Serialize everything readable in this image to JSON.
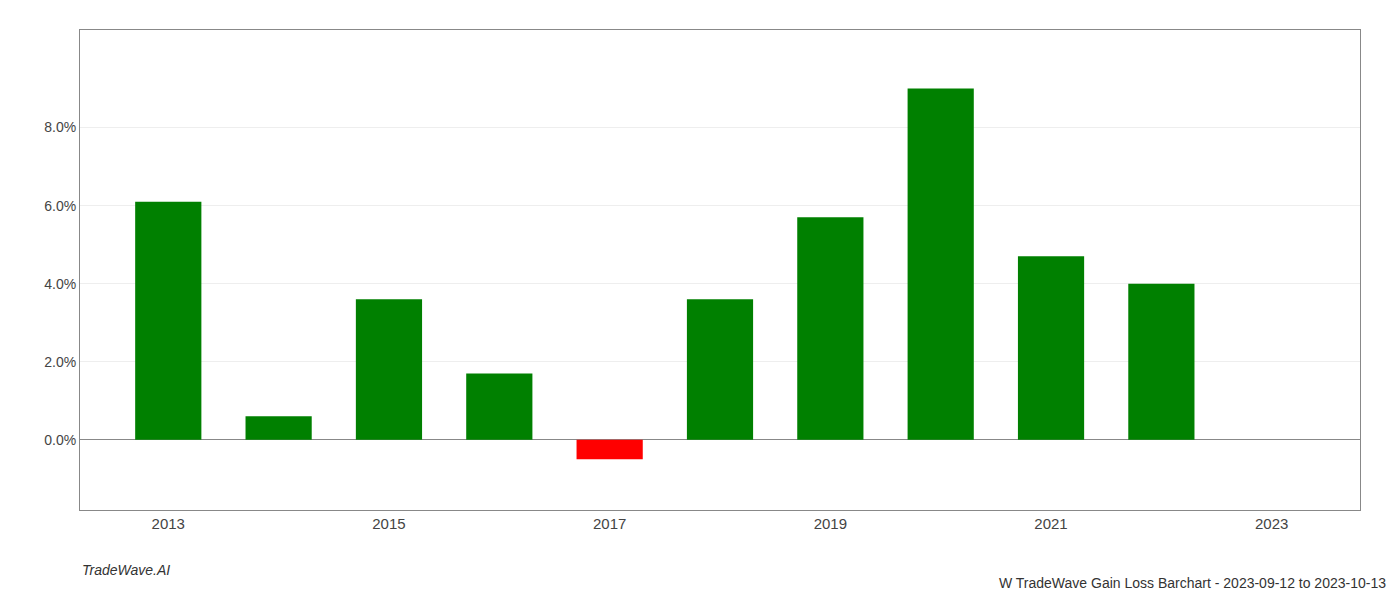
{
  "chart_data": {
    "type": "bar",
    "title": "W TradeWave Gain Loss Barchart - 2023-09-12 to 2023-10-13",
    "annotations": [
      "TradeWave.AI"
    ],
    "x": [
      2013,
      2014,
      2015,
      2016,
      2017,
      2018,
      2019,
      2020,
      2021,
      2022
    ],
    "values": [
      0.061,
      0.006,
      0.036,
      0.017,
      -0.005,
      0.036,
      0.057,
      0.09,
      0.047,
      0.04
    ],
    "colors": [
      "#008000",
      "#008000",
      "#008000",
      "#008000",
      "#ff0000",
      "#008000",
      "#008000",
      "#008000",
      "#008000",
      "#008000"
    ],
    "xlim": [
      2012.2,
      2023.8
    ],
    "xticks": [
      2013,
      2015,
      2017,
      2019,
      2021,
      2023
    ],
    "ylim": [
      -0.018,
      0.105
    ],
    "yticks": [
      {
        "value": 0.0,
        "label": "0.0%"
      },
      {
        "value": 0.02,
        "label": "2.0%"
      },
      {
        "value": 0.04,
        "label": "4.0%"
      },
      {
        "value": 0.06,
        "label": "6.0%"
      },
      {
        "value": 0.08,
        "label": "8.0%"
      }
    ],
    "grid": true
  }
}
